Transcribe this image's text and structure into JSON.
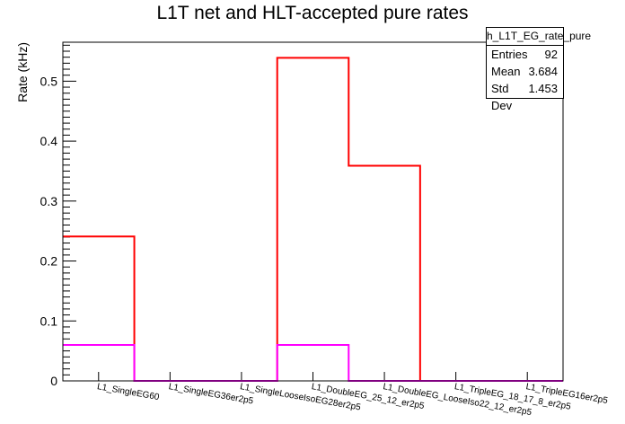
{
  "chart_data": {
    "type": "bar",
    "title": "L1T net and HLT-accepted pure rates",
    "xlabel": "",
    "ylabel": "Rate (kHz)",
    "ylim": [
      0,
      0.565
    ],
    "yticks": [
      0,
      0.1,
      0.2,
      0.3,
      0.4,
      0.5
    ],
    "yticklabels": [
      "0",
      "0.1",
      "0.2",
      "0.3",
      "0.4",
      "0.5"
    ],
    "categories": [
      "L1_SingleEG60",
      "L1_SingleEG36er2p5",
      "L1_SingleLooseIsoEG28er2p5",
      "L1_DoubleEG_25_12_er2p5",
      "L1_DoubleEG_LooseIso22_12_er2p5",
      "L1_TripleEG_18_17_8_er2p5",
      "L1_TripleEG16er2p5"
    ],
    "series": [
      {
        "values": [
          0.241,
          0,
          0,
          0.539,
          0.359,
          0,
          0
        ],
        "color": "#ff0000",
        "style": "histogram-step"
      },
      {
        "values": [
          0.06,
          0,
          0,
          0.06,
          0,
          0,
          0
        ],
        "color": "#ff00ff",
        "style": "histogram-step"
      }
    ],
    "grid": false,
    "legend": "none",
    "stats_box": {
      "name": "h_L1T_EG_rate_pure",
      "rows": [
        {
          "label": "Entries",
          "value": "92"
        },
        {
          "label": "Mean",
          "value": "3.684"
        },
        {
          "label": "Std Dev",
          "value": "1.453"
        }
      ]
    }
  }
}
